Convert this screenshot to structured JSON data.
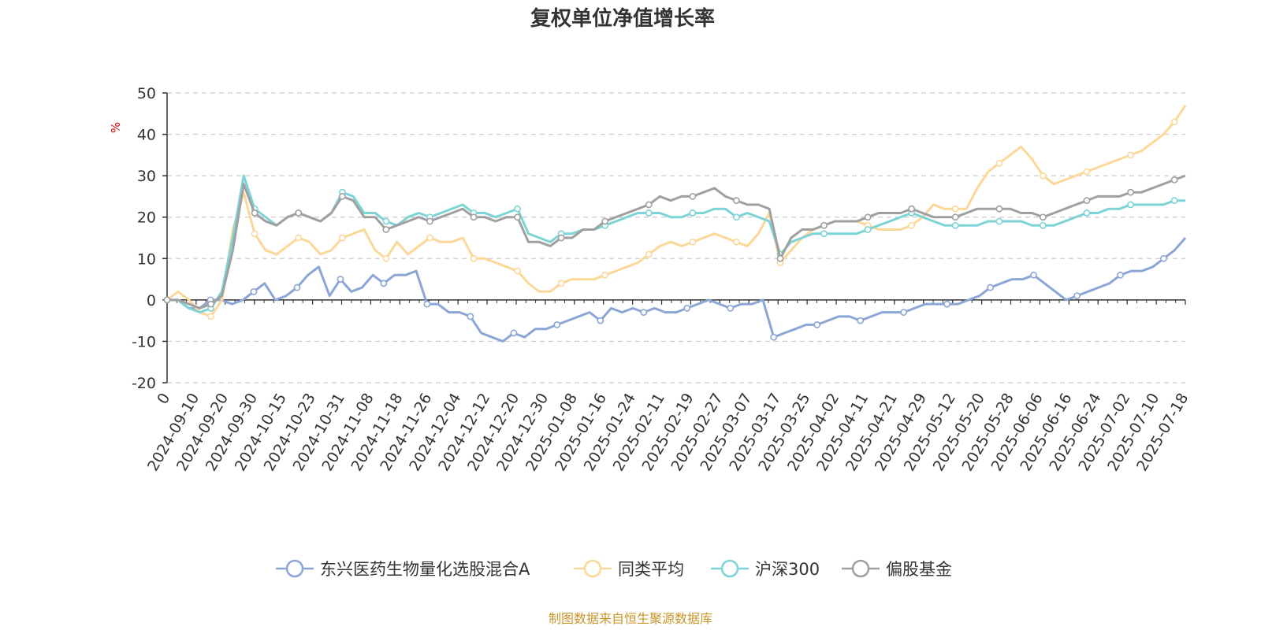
{
  "chart_data": {
    "type": "line",
    "title": "复权单位净值增长率",
    "ylabel": "%",
    "ylim": [
      -20,
      50
    ],
    "yticks": [
      -20,
      -10,
      0,
      10,
      20,
      30,
      40,
      50
    ],
    "grid": true,
    "legend_position": "bottom",
    "source": "制图数据来自恒生聚源数据库",
    "x_tick_labels": [
      "0",
      "2024-09-10",
      "2024-09-20",
      "2024-09-30",
      "2024-10-15",
      "2024-10-23",
      "2024-10-31",
      "2024-11-08",
      "2024-11-18",
      "2024-11-26",
      "2024-12-04",
      "2024-12-12",
      "2024-12-20",
      "2024-12-30",
      "2025-01-08",
      "2025-01-16",
      "2025-01-24",
      "2025-02-11",
      "2025-02-19",
      "2025-02-27",
      "2025-03-07",
      "2025-03-17",
      "2025-03-25",
      "2025-04-02",
      "2025-04-11",
      "2025-04-21",
      "2025-04-29",
      "2025-05-12",
      "2025-05-20",
      "2025-05-28",
      "2025-06-06",
      "2025-06-16",
      "2025-06-24",
      "2025-07-02",
      "2025-07-10",
      "2025-07-18"
    ],
    "series": [
      {
        "name": "东兴医药生物量化选股混合A",
        "color": "#8ba6d6",
        "values": [
          0,
          0,
          -2,
          -2,
          0,
          0,
          -1,
          0,
          2,
          4,
          0,
          1,
          3,
          6,
          8,
          1,
          5,
          2,
          3,
          6,
          4,
          6,
          6,
          7,
          -1,
          -1,
          -3,
          -3,
          -4,
          -8,
          -9,
          -10,
          -8,
          -9,
          -7,
          -7,
          -6,
          -5,
          -4,
          -3,
          -5,
          -2,
          -3,
          -2,
          -3,
          -2,
          -3,
          -3,
          -2,
          -1,
          0,
          -1,
          -2,
          -1,
          -1,
          0,
          -9,
          -8,
          -7,
          -6,
          -6,
          -5,
          -4,
          -4,
          -5,
          -4,
          -3,
          -3,
          -3,
          -2,
          -1,
          -1,
          -1,
          -1,
          0,
          1,
          3,
          4,
          5,
          5,
          6,
          4,
          2,
          0,
          1,
          2,
          3,
          4,
          6,
          7,
          7,
          8,
          10,
          12,
          15
        ]
      },
      {
        "name": "同类平均",
        "color": "#fbd89a",
        "values": [
          0,
          2,
          0,
          -3,
          -4,
          0,
          17,
          26,
          16,
          12,
          11,
          13,
          15,
          14,
          11,
          12,
          15,
          16,
          17,
          12,
          10,
          14,
          11,
          13,
          15,
          14,
          14,
          15,
          10,
          10,
          9,
          8,
          7,
          4,
          2,
          2,
          4,
          5,
          5,
          5,
          6,
          7,
          8,
          9,
          11,
          13,
          14,
          13,
          14,
          15,
          16,
          15,
          14,
          13,
          16,
          21,
          9,
          12,
          15,
          17,
          18,
          19,
          19,
          19,
          18,
          17,
          17,
          17,
          18,
          20,
          23,
          22,
          22,
          22,
          27,
          31,
          33,
          35,
          37,
          34,
          30,
          28,
          29,
          30,
          31,
          32,
          33,
          34,
          35,
          36,
          38,
          40,
          43,
          47
        ]
      },
      {
        "name": "沪深300",
        "color": "#7dd3d6",
        "values": [
          0,
          0,
          -2,
          -3,
          -2,
          2,
          15,
          30,
          22,
          20,
          18,
          20,
          21,
          20,
          19,
          21,
          26,
          25,
          21,
          21,
          19,
          18,
          20,
          21,
          20,
          21,
          22,
          23,
          21,
          21,
          20,
          21,
          22,
          16,
          15,
          14,
          16,
          16,
          17,
          17,
          18,
          19,
          20,
          21,
          21,
          21,
          20,
          20,
          21,
          21,
          22,
          22,
          20,
          21,
          20,
          19,
          11,
          14,
          15,
          16,
          16,
          16,
          16,
          16,
          17,
          18,
          19,
          20,
          21,
          20,
          19,
          18,
          18,
          18,
          18,
          19,
          19,
          19,
          19,
          18,
          18,
          18,
          19,
          20,
          21,
          21,
          22,
          22,
          23,
          23,
          23,
          23,
          24,
          24
        ]
      },
      {
        "name": "偏股基金",
        "color": "#a0a0a0",
        "values": [
          0,
          0,
          -1,
          -2,
          -1,
          1,
          12,
          28,
          21,
          19,
          18,
          20,
          21,
          20,
          19,
          21,
          25,
          24,
          20,
          20,
          17,
          18,
          19,
          20,
          19,
          20,
          21,
          22,
          20,
          20,
          19,
          20,
          20,
          14,
          14,
          13,
          15,
          15,
          17,
          17,
          19,
          20,
          21,
          22,
          23,
          25,
          24,
          25,
          25,
          26,
          27,
          25,
          24,
          23,
          23,
          22,
          10,
          15,
          17,
          17,
          18,
          19,
          19,
          19,
          20,
          21,
          21,
          21,
          22,
          21,
          20,
          20,
          20,
          21,
          22,
          22,
          22,
          22,
          21,
          21,
          20,
          21,
          22,
          23,
          24,
          25,
          25,
          25,
          26,
          26,
          27,
          28,
          29,
          30
        ]
      }
    ]
  }
}
